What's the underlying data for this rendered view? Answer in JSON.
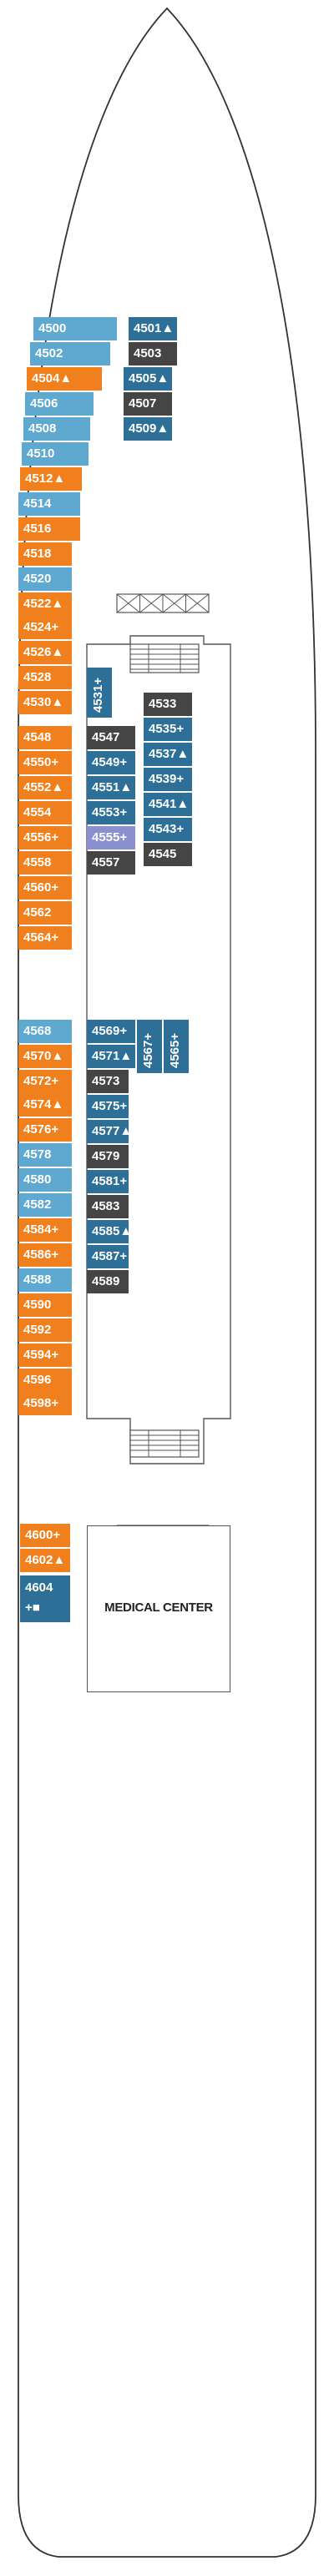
{
  "deck": {
    "cabins": [
      {
        "id": "c4500",
        "label": "4500",
        "color": "lightblue"
      },
      {
        "id": "c4501",
        "label": "4501▲",
        "color": "darkblue"
      },
      {
        "id": "c4502",
        "label": "4502",
        "color": "lightblue"
      },
      {
        "id": "c4503",
        "label": "4503",
        "color": "dark"
      },
      {
        "id": "c4504",
        "label": "4504▲",
        "color": "orange"
      },
      {
        "id": "c4505",
        "label": "4505▲",
        "color": "darkblue"
      },
      {
        "id": "c4506",
        "label": "4506",
        "color": "lightblue"
      },
      {
        "id": "c4507",
        "label": "4507",
        "color": "dark"
      },
      {
        "id": "c4508",
        "label": "4508",
        "color": "lightblue"
      },
      {
        "id": "c4509",
        "label": "4509▲",
        "color": "darkblue"
      },
      {
        "id": "c4510",
        "label": "4510",
        "color": "lightblue"
      },
      {
        "id": "c4512",
        "label": "4512▲",
        "color": "orange"
      },
      {
        "id": "c4514",
        "label": "4514",
        "color": "lightblue"
      },
      {
        "id": "c4516",
        "label": "4516",
        "color": "orange"
      },
      {
        "id": "c4518",
        "label": "4518",
        "color": "orange"
      },
      {
        "id": "c4520",
        "label": "4520",
        "color": "lightblue"
      },
      {
        "id": "c4522",
        "label": "4522▲",
        "color": "orange"
      },
      {
        "id": "c4524",
        "label": "4524+",
        "color": "orange"
      },
      {
        "id": "c4526",
        "label": "4526▲",
        "color": "orange"
      },
      {
        "id": "c4528",
        "label": "4528",
        "color": "orange"
      },
      {
        "id": "c4530",
        "label": "4530▲",
        "color": "orange"
      },
      {
        "id": "c4531",
        "label": "4531+",
        "color": "darkblue"
      },
      {
        "id": "c4533",
        "label": "4533",
        "color": "dark"
      },
      {
        "id": "c4535",
        "label": "4535+",
        "color": "darkblue"
      },
      {
        "id": "c4537",
        "label": "4537▲",
        "color": "darkblue"
      },
      {
        "id": "c4539",
        "label": "4539+",
        "color": "darkblue"
      },
      {
        "id": "c4541",
        "label": "4541▲",
        "color": "darkblue"
      },
      {
        "id": "c4543",
        "label": "4543+",
        "color": "darkblue"
      },
      {
        "id": "c4545",
        "label": "4545",
        "color": "dark"
      },
      {
        "id": "c4547",
        "label": "4547",
        "color": "dark"
      },
      {
        "id": "c4548",
        "label": "4548",
        "color": "orange"
      },
      {
        "id": "c4549",
        "label": "4549+",
        "color": "darkblue"
      },
      {
        "id": "c4550",
        "label": "4550+",
        "color": "orange"
      },
      {
        "id": "c4551",
        "label": "4551▲",
        "color": "darkblue"
      },
      {
        "id": "c4552",
        "label": "4552▲",
        "color": "orange"
      },
      {
        "id": "c4553",
        "label": "4553+",
        "color": "darkblue"
      },
      {
        "id": "c4554",
        "label": "4554",
        "color": "orange"
      },
      {
        "id": "c4555",
        "label": "4555+",
        "color": "purple"
      },
      {
        "id": "c4556",
        "label": "4556+",
        "color": "orange"
      },
      {
        "id": "c4557",
        "label": "4557",
        "color": "dark"
      },
      {
        "id": "c4558",
        "label": "4558",
        "color": "orange"
      },
      {
        "id": "c4560",
        "label": "4560+",
        "color": "orange"
      },
      {
        "id": "c4562",
        "label": "4562",
        "color": "orange"
      },
      {
        "id": "c4564",
        "label": "4564+",
        "color": "orange"
      },
      {
        "id": "c4565",
        "label": "4565+",
        "color": "darkblue"
      },
      {
        "id": "c4567",
        "label": "4567+",
        "color": "darkblue"
      },
      {
        "id": "c4568",
        "label": "4568",
        "color": "lightblue"
      },
      {
        "id": "c4569",
        "label": "4569+",
        "color": "darkblue"
      },
      {
        "id": "c4570",
        "label": "4570▲",
        "color": "orange"
      },
      {
        "id": "c4571",
        "label": "4571▲",
        "color": "darkblue"
      },
      {
        "id": "c4572",
        "label": "4572+",
        "color": "orange"
      },
      {
        "id": "c4573",
        "label": "4573",
        "color": "dark"
      },
      {
        "id": "c4574",
        "label": "4574▲",
        "color": "orange"
      },
      {
        "id": "c4575",
        "label": "4575+",
        "color": "darkblue"
      },
      {
        "id": "c4576",
        "label": "4576+",
        "color": "orange"
      },
      {
        "id": "c4577",
        "label": "4577▲",
        "color": "darkblue"
      },
      {
        "id": "c4578",
        "label": "4578",
        "color": "lightblue"
      },
      {
        "id": "c4579",
        "label": "4579",
        "color": "dark"
      },
      {
        "id": "c4580",
        "label": "4580",
        "color": "lightblue"
      },
      {
        "id": "c4581",
        "label": "4581+",
        "color": "darkblue"
      },
      {
        "id": "c4582",
        "label": "4582",
        "color": "lightblue"
      },
      {
        "id": "c4583",
        "label": "4583",
        "color": "dark"
      },
      {
        "id": "c4584",
        "label": "4584+",
        "color": "orange"
      },
      {
        "id": "c4585",
        "label": "4585▲",
        "color": "darkblue"
      },
      {
        "id": "c4586",
        "label": "4586+",
        "color": "orange"
      },
      {
        "id": "c4587",
        "label": "4587+",
        "color": "darkblue"
      },
      {
        "id": "c4588",
        "label": "4588",
        "color": "lightblue"
      },
      {
        "id": "c4589",
        "label": "4589",
        "color": "dark"
      },
      {
        "id": "c4590",
        "label": "4590",
        "color": "orange"
      },
      {
        "id": "c4592",
        "label": "4592",
        "color": "orange"
      },
      {
        "id": "c4594",
        "label": "4594+",
        "color": "orange"
      },
      {
        "id": "c4596",
        "label": "4596",
        "color": "orange"
      },
      {
        "id": "c4598",
        "label": "4598+",
        "color": "orange"
      },
      {
        "id": "c4600",
        "label": "4600+",
        "color": "orange"
      },
      {
        "id": "c4602",
        "label": "4602▲",
        "color": "orange"
      },
      {
        "id": "c4604",
        "label": "4604",
        "sub": "+■",
        "color": "darkblue"
      }
    ],
    "connectors": [
      "4522/4524",
      "4550/4552",
      "4554/4556",
      "4572/4574",
      "4596/4598"
    ],
    "medical_center": "MEDICAL CENTER",
    "colors": {
      "hull": "#333333",
      "orange": "#f07f1e",
      "lightblue": "#5fa8cf",
      "darkblue": "#2d6f96",
      "dark": "#454545",
      "purple": "#8a8fd0"
    }
  }
}
